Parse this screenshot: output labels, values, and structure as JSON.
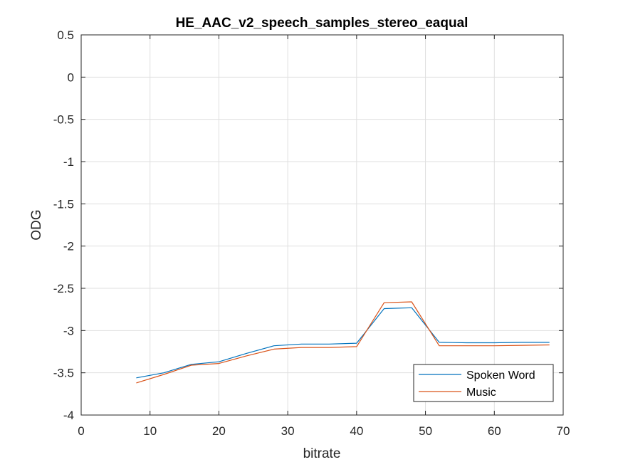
{
  "chart_data": {
    "type": "line",
    "title": "HE_AAC_v2_speech_samples_stereo_eaqual",
    "xlabel": "bitrate",
    "ylabel": "ODG",
    "xlim": [
      0,
      70
    ],
    "ylim": [
      -4,
      0.5
    ],
    "xticks": [
      0,
      10,
      20,
      30,
      40,
      50,
      60,
      70
    ],
    "yticks": [
      0.5,
      0,
      -0.5,
      -1,
      -1.5,
      -2,
      -2.5,
      -3,
      -3.5,
      -4
    ],
    "grid": true,
    "legend_position": "bottom-right",
    "series": [
      {
        "name": "Spoken Word",
        "color": "#0072BD",
        "x": [
          8,
          12,
          16,
          20,
          24,
          28,
          32,
          36,
          40,
          44,
          48,
          52,
          56,
          60,
          64,
          68
        ],
        "y": [
          -3.56,
          -3.5,
          -3.4,
          -3.37,
          -3.27,
          -3.18,
          -3.16,
          -3.16,
          -3.15,
          -2.74,
          -2.73,
          -3.14,
          -3.145,
          -3.145,
          -3.14,
          -3.14
        ]
      },
      {
        "name": "Music",
        "color": "#D95319",
        "x": [
          8,
          12,
          16,
          20,
          24,
          28,
          32,
          36,
          40,
          44,
          48,
          52,
          56,
          60,
          64,
          68
        ],
        "y": [
          -3.62,
          -3.52,
          -3.41,
          -3.39,
          -3.3,
          -3.22,
          -3.2,
          -3.2,
          -3.19,
          -2.67,
          -2.66,
          -3.18,
          -3.18,
          -3.18,
          -3.175,
          -3.17
        ]
      }
    ]
  }
}
